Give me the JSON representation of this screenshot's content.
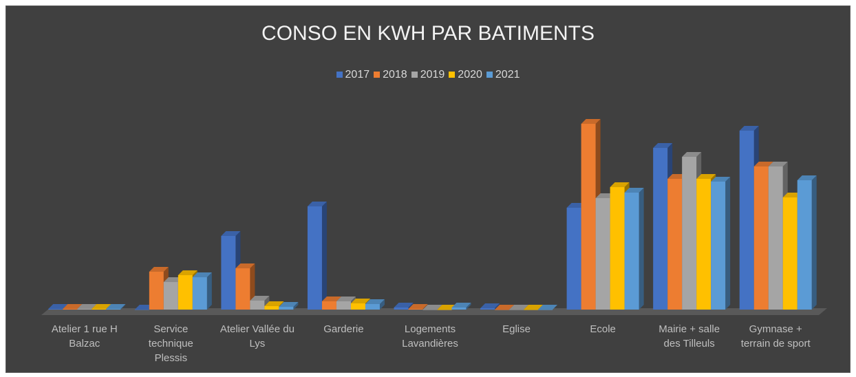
{
  "chart_data": {
    "type": "bar3d",
    "title": "CONSO EN KWH PAR BATIMENTS",
    "categories": [
      "Atelier 1 rue H Balzac",
      "Service technique Plessis",
      "Atelier Vallée du Lys",
      "Garderie",
      "Logements Lavandières",
      "Eglise",
      "Ecole",
      "Mairie + salle des Tilleuls",
      "Gymnase + terrain de sport"
    ],
    "series": [
      {
        "name": "2017",
        "color": "#4472c4",
        "values": [
          1,
          0,
          107,
          150,
          3,
          2,
          148,
          235,
          260
        ]
      },
      {
        "name": "2018",
        "color": "#ed7d31",
        "values": [
          1,
          55,
          60,
          12,
          1,
          0,
          270,
          190,
          208
        ]
      },
      {
        "name": "2019",
        "color": "#a5a5a5",
        "values": [
          1,
          40,
          13,
          12,
          0,
          0,
          162,
          222,
          208
        ]
      },
      {
        "name": "2020",
        "color": "#ffc000",
        "values": [
          1,
          50,
          5,
          9,
          0,
          0,
          178,
          190,
          163
        ]
      },
      {
        "name": "2021",
        "color": "#5b9bd5",
        "values": [
          1,
          47,
          4,
          8,
          3,
          0,
          170,
          186,
          188
        ]
      }
    ],
    "ylim": [
      0,
      290
    ],
    "legend": "top"
  }
}
